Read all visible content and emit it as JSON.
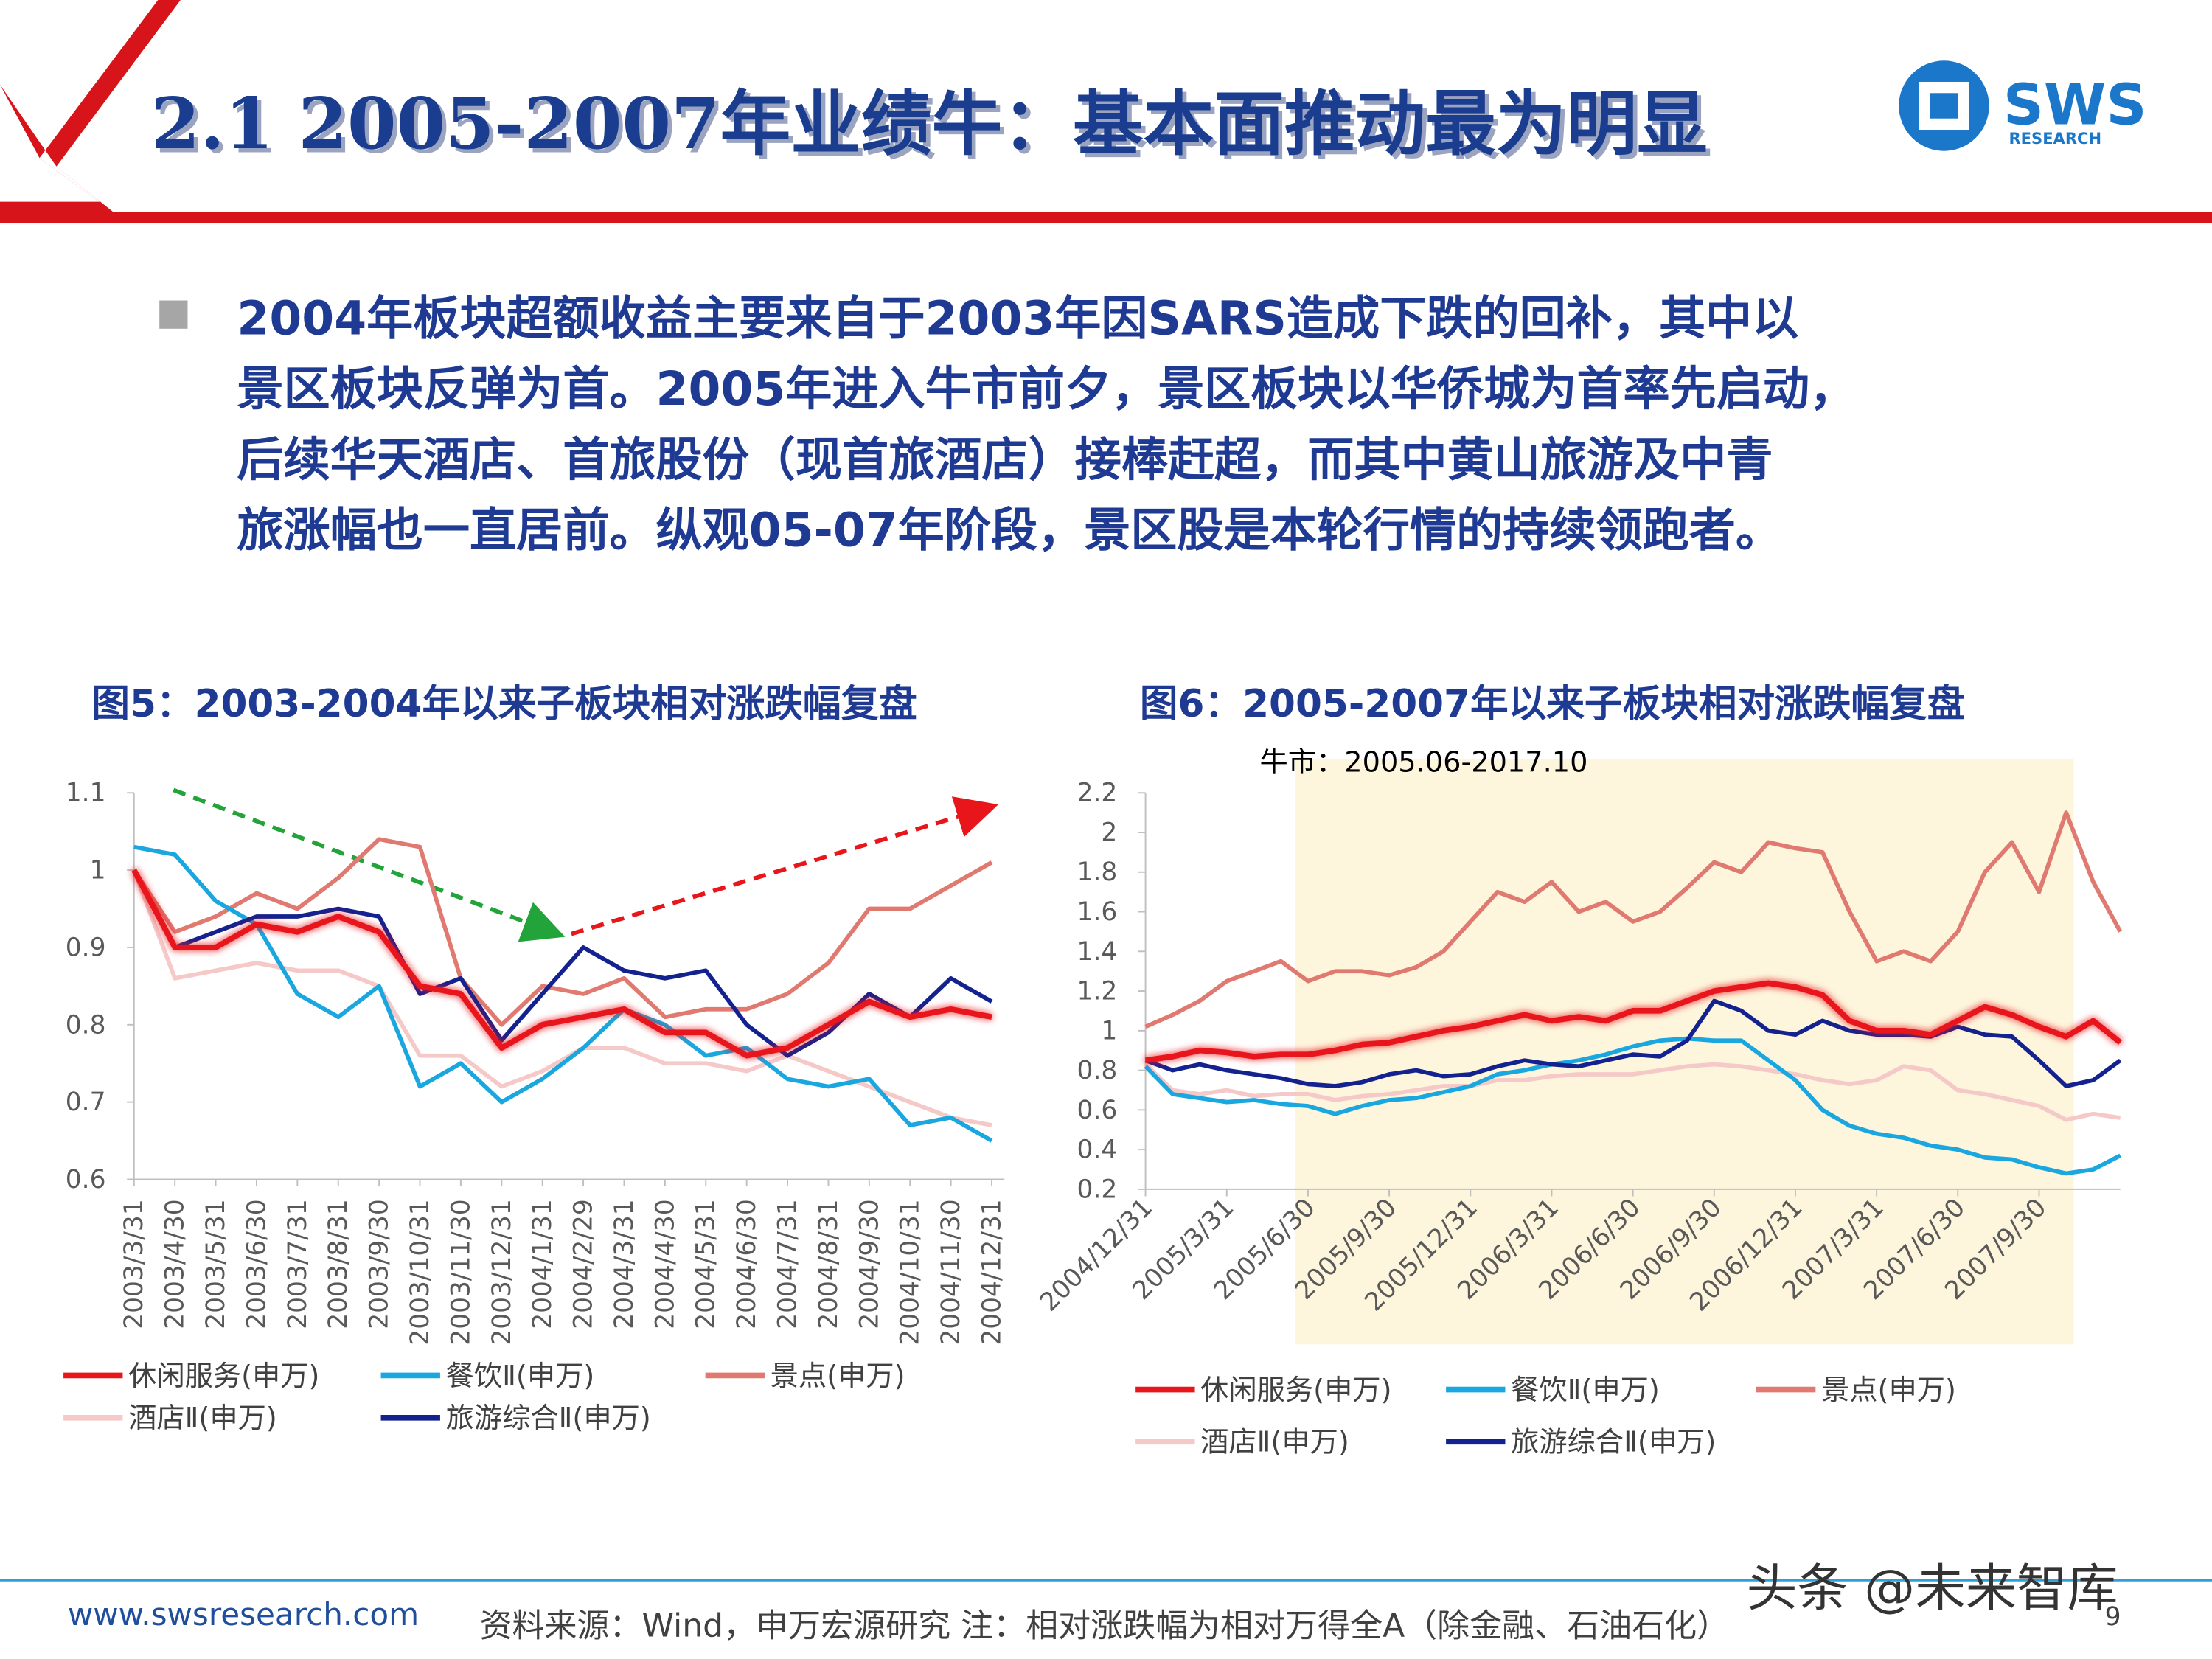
{
  "header": {
    "title": "2.1 2005-2007年业绩牛：基本面推动最为明显",
    "logo": "SWS",
    "logo_sub": "RESEARCH"
  },
  "bullet": [
    "2004年板块超额收益主要来自于2003年因SARS造成下跌的回补，其中以",
    "景区板块反弹为首。2005年进入牛市前夕，景区板块以华侨城为首率先启动，",
    "后续华天酒店、首旅股份（现首旅酒店）接棒赶超，而其中黄山旅游及中青",
    "旅涨幅也一直居前。纵观05-07年阶段，景区股是本轮行情的持续领跑者。"
  ],
  "footer": {
    "website": "www.swsresearch.com",
    "source": "资料来源：Wind，申万宏源研究    注：相对涨跌幅为相对万得全A（除金融、石油石化）",
    "page": "9",
    "watermark": "头条 @未来智库"
  },
  "chart_data": [
    {
      "type": "line",
      "title": "图5：2003-2004年以来子板块相对涨跌幅复盘",
      "categories": [
        "2003/3/31",
        "2003/4/30",
        "2003/5/31",
        "2003/6/30",
        "2003/7/31",
        "2003/8/31",
        "2003/9/30",
        "2003/10/31",
        "2003/11/30",
        "2003/12/31",
        "2004/1/31",
        "2004/2/29",
        "2004/3/31",
        "2004/4/30",
        "2004/5/31",
        "2004/6/30",
        "2004/7/31",
        "2004/8/31",
        "2004/9/30",
        "2004/10/31",
        "2004/11/30",
        "2004/12/31"
      ],
      "ylim": [
        0.6,
        1.1
      ],
      "yticks": [
        0.6,
        0.7,
        0.8,
        0.9,
        1,
        1.1
      ],
      "series": [
        {
          "name": "休闲服务(申万)",
          "color": "#e8151a",
          "glow": true,
          "values": [
            1.0,
            0.9,
            0.9,
            0.93,
            0.92,
            0.94,
            0.92,
            0.85,
            0.84,
            0.77,
            0.8,
            0.81,
            0.82,
            0.79,
            0.79,
            0.76,
            0.77,
            0.8,
            0.83,
            0.81,
            0.82,
            0.81
          ]
        },
        {
          "name": "餐饮Ⅱ(申万)",
          "color": "#1aa7e0",
          "values": [
            1.03,
            1.02,
            0.96,
            0.93,
            0.84,
            0.81,
            0.85,
            0.72,
            0.75,
            0.7,
            0.73,
            0.77,
            0.82,
            0.8,
            0.76,
            0.77,
            0.73,
            0.72,
            0.73,
            0.67,
            0.68,
            0.65
          ]
        },
        {
          "name": "景点(申万)",
          "color": "#e07a70",
          "values": [
            1.0,
            0.92,
            0.94,
            0.97,
            0.95,
            0.99,
            1.04,
            1.03,
            0.86,
            0.8,
            0.85,
            0.84,
            0.86,
            0.81,
            0.82,
            0.82,
            0.84,
            0.88,
            0.95,
            0.95,
            0.98,
            1.01
          ]
        },
        {
          "name": "酒店Ⅱ(申万)",
          "color": "#f6c9c9",
          "values": [
            1.0,
            0.86,
            0.87,
            0.88,
            0.87,
            0.87,
            0.85,
            0.76,
            0.76,
            0.72,
            0.74,
            0.77,
            0.77,
            0.75,
            0.75,
            0.74,
            0.76,
            0.74,
            0.72,
            0.7,
            0.68,
            0.67
          ]
        },
        {
          "name": "旅游综合Ⅱ(申万)",
          "color": "#14228f",
          "values": [
            1.0,
            0.9,
            0.92,
            0.94,
            0.94,
            0.95,
            0.94,
            0.84,
            0.86,
            0.78,
            0.84,
            0.9,
            0.87,
            0.86,
            0.87,
            0.8,
            0.76,
            0.79,
            0.84,
            0.81,
            0.86,
            0.83
          ]
        }
      ]
    },
    {
      "type": "line",
      "title": "图6：2005-2007年以来子板块相对涨跌幅复盘",
      "annotation": "牛市：2005.06-2017.10",
      "categories": [
        "2004/12/31",
        null,
        null,
        "2005/3/31",
        null,
        null,
        "2005/6/30",
        null,
        null,
        "2005/9/30",
        null,
        null,
        "2005/12/31",
        null,
        null,
        "2006/3/31",
        null,
        null,
        "2006/6/30",
        null,
        null,
        "2006/9/30",
        null,
        null,
        "2006/12/31",
        null,
        null,
        "2007/3/31",
        null,
        null,
        "2007/6/30",
        null,
        null,
        "2007/9/30",
        null,
        null,
        null
      ],
      "ylim": [
        0.2,
        2.2
      ],
      "yticks": [
        0.2,
        0.4,
        0.6,
        0.8,
        1,
        1.2,
        1.4,
        1.6,
        1.8,
        2,
        2.2
      ],
      "series": [
        {
          "name": "休闲服务(申万)",
          "color": "#e8151a",
          "glow": true,
          "values": [
            0.85,
            0.87,
            0.9,
            0.89,
            0.87,
            0.88,
            0.88,
            0.9,
            0.93,
            0.94,
            0.97,
            1.0,
            1.02,
            1.05,
            1.08,
            1.05,
            1.07,
            1.05,
            1.1,
            1.1,
            1.15,
            1.2,
            1.22,
            1.24,
            1.22,
            1.18,
            1.05,
            1.0,
            1.0,
            0.98,
            1.05,
            1.12,
            1.08,
            1.02,
            0.97,
            1.05,
            0.94
          ]
        },
        {
          "name": "餐饮Ⅱ(申万)",
          "color": "#1aa7e0",
          "values": [
            0.82,
            0.68,
            0.66,
            0.64,
            0.65,
            0.63,
            0.62,
            0.58,
            0.62,
            0.65,
            0.66,
            0.69,
            0.72,
            0.78,
            0.8,
            0.83,
            0.85,
            0.88,
            0.92,
            0.95,
            0.96,
            0.95,
            0.95,
            0.85,
            0.75,
            0.6,
            0.52,
            0.48,
            0.46,
            0.42,
            0.4,
            0.36,
            0.35,
            0.31,
            0.28,
            0.3,
            0.37
          ]
        },
        {
          "name": "景点(申万)",
          "color": "#e07a70",
          "values": [
            1.02,
            1.08,
            1.15,
            1.25,
            1.3,
            1.35,
            1.25,
            1.3,
            1.3,
            1.28,
            1.32,
            1.4,
            1.55,
            1.7,
            1.65,
            1.75,
            1.6,
            1.65,
            1.55,
            1.6,
            1.72,
            1.85,
            1.8,
            1.95,
            1.92,
            1.9,
            1.6,
            1.35,
            1.4,
            1.35,
            1.5,
            1.8,
            1.95,
            1.7,
            2.1,
            1.75,
            1.5
          ]
        },
        {
          "name": "酒店Ⅱ(申万)",
          "color": "#f6c9c9",
          "values": [
            0.83,
            0.7,
            0.68,
            0.7,
            0.67,
            0.68,
            0.68,
            0.65,
            0.67,
            0.68,
            0.7,
            0.72,
            0.72,
            0.75,
            0.75,
            0.77,
            0.78,
            0.78,
            0.78,
            0.8,
            0.82,
            0.83,
            0.82,
            0.8,
            0.78,
            0.75,
            0.73,
            0.75,
            0.82,
            0.8,
            0.7,
            0.68,
            0.65,
            0.62,
            0.55,
            0.58,
            0.56
          ]
        },
        {
          "name": "旅游综合Ⅱ(申万)",
          "color": "#14228f",
          "values": [
            0.85,
            0.8,
            0.83,
            0.8,
            0.78,
            0.76,
            0.73,
            0.72,
            0.74,
            0.78,
            0.8,
            0.77,
            0.78,
            0.82,
            0.85,
            0.83,
            0.82,
            0.85,
            0.88,
            0.87,
            0.95,
            1.15,
            1.1,
            1.0,
            0.98,
            1.05,
            1.0,
            0.98,
            0.98,
            0.97,
            1.02,
            0.98,
            0.97,
            0.85,
            0.72,
            0.75,
            0.85
          ]
        }
      ]
    }
  ]
}
